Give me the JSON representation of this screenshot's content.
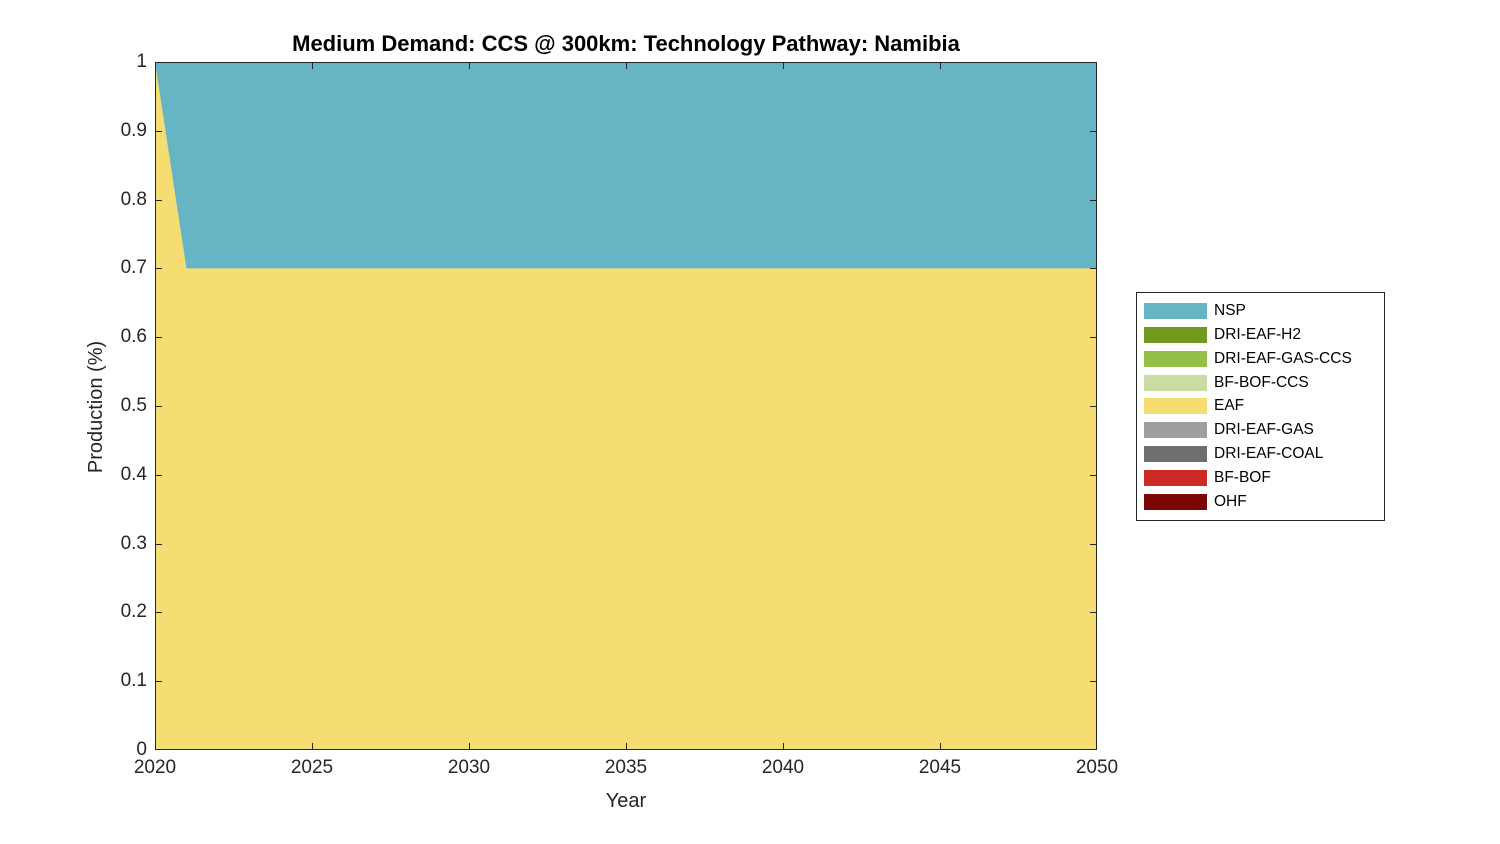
{
  "chart_data": {
    "type": "area",
    "stacked": true,
    "title": "Medium Demand: CCS @ 300km: Technology Pathway: Namibia",
    "xlabel": "Year",
    "ylabel": "Production (%)",
    "xlim": [
      2020,
      2050
    ],
    "ylim": [
      0,
      1
    ],
    "xticks": [
      2020,
      2025,
      2030,
      2035,
      2040,
      2045,
      2050
    ],
    "xtick_labels": [
      "2020",
      "2025",
      "2030",
      "2035",
      "2040",
      "2045",
      "2050"
    ],
    "yticks": [
      0,
      0.1,
      0.2,
      0.3,
      0.4,
      0.5,
      0.6,
      0.7,
      0.8,
      0.9,
      1
    ],
    "ytick_labels": [
      "0",
      "0.1",
      "0.2",
      "0.3",
      "0.4",
      "0.5",
      "0.6",
      "0.7",
      "0.8",
      "0.9",
      "1"
    ],
    "grid": false,
    "legend_position": "right-outside",
    "axis_color": "#262626",
    "x": [
      2020,
      2021,
      2050
    ],
    "series": [
      {
        "name": "OHF",
        "color": "#7b0605",
        "values": [
          0,
          0,
          0
        ]
      },
      {
        "name": "BF-BOF",
        "color": "#cd2a25",
        "values": [
          0,
          0,
          0
        ]
      },
      {
        "name": "DRI-EAF-COAL",
        "color": "#6f6f6f",
        "values": [
          0,
          0,
          0
        ]
      },
      {
        "name": "DRI-EAF-GAS",
        "color": "#9e9e9e",
        "values": [
          0,
          0,
          0
        ]
      },
      {
        "name": "EAF",
        "color": "#f6dd71",
        "values": [
          1.0,
          0.7,
          0.7
        ]
      },
      {
        "name": "BF-BOF-CCS",
        "color": "#c9dca1",
        "values": [
          0,
          0,
          0
        ]
      },
      {
        "name": "DRI-EAF-GAS-CCS",
        "color": "#93c049",
        "values": [
          0,
          0,
          0
        ]
      },
      {
        "name": "DRI-EAF-H2",
        "color": "#6f9a1b",
        "values": [
          0,
          0,
          0
        ]
      },
      {
        "name": "NSP",
        "color": "#66b5c4",
        "values": [
          0,
          0.3,
          0.3
        ]
      }
    ],
    "legend": [
      {
        "label": "NSP",
        "color": "#66b5c4"
      },
      {
        "label": "DRI-EAF-H2",
        "color": "#6f9a1b"
      },
      {
        "label": "DRI-EAF-GAS-CCS",
        "color": "#93c049"
      },
      {
        "label": "BF-BOF-CCS",
        "color": "#c9dca1"
      },
      {
        "label": "EAF",
        "color": "#f6dd71"
      },
      {
        "label": "DRI-EAF-GAS",
        "color": "#9e9e9e"
      },
      {
        "label": "DRI-EAF-COAL",
        "color": "#6f6f6f"
      },
      {
        "label": "BF-BOF",
        "color": "#cd2a25"
      },
      {
        "label": "OHF",
        "color": "#7b0605"
      }
    ]
  }
}
